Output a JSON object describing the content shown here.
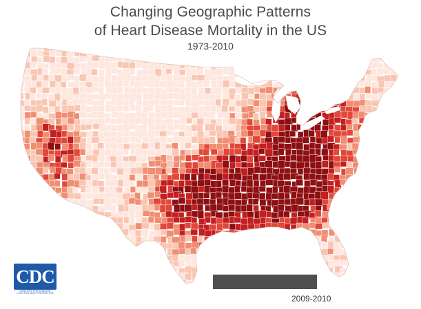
{
  "title_line1": "Changing Geographic Patterns",
  "title_line2": "of Heart Disease Mortality in the US",
  "subtitle": "1973-2010",
  "current_year_label": "2009-2010",
  "timeline_progress": 1.0,
  "logo": {
    "text": "CDC",
    "tagline": "CENTERS FOR DISEASE CONTROL AND PREVENTION",
    "color": "#1e5aa8"
  },
  "colors": {
    "lowest": "#fde7df",
    "low": "#f9c6b3",
    "mid": "#f08e72",
    "high": "#e2483a",
    "higher": "#c41f20",
    "highest": "#8e0f12",
    "border": "#ffffff"
  }
}
